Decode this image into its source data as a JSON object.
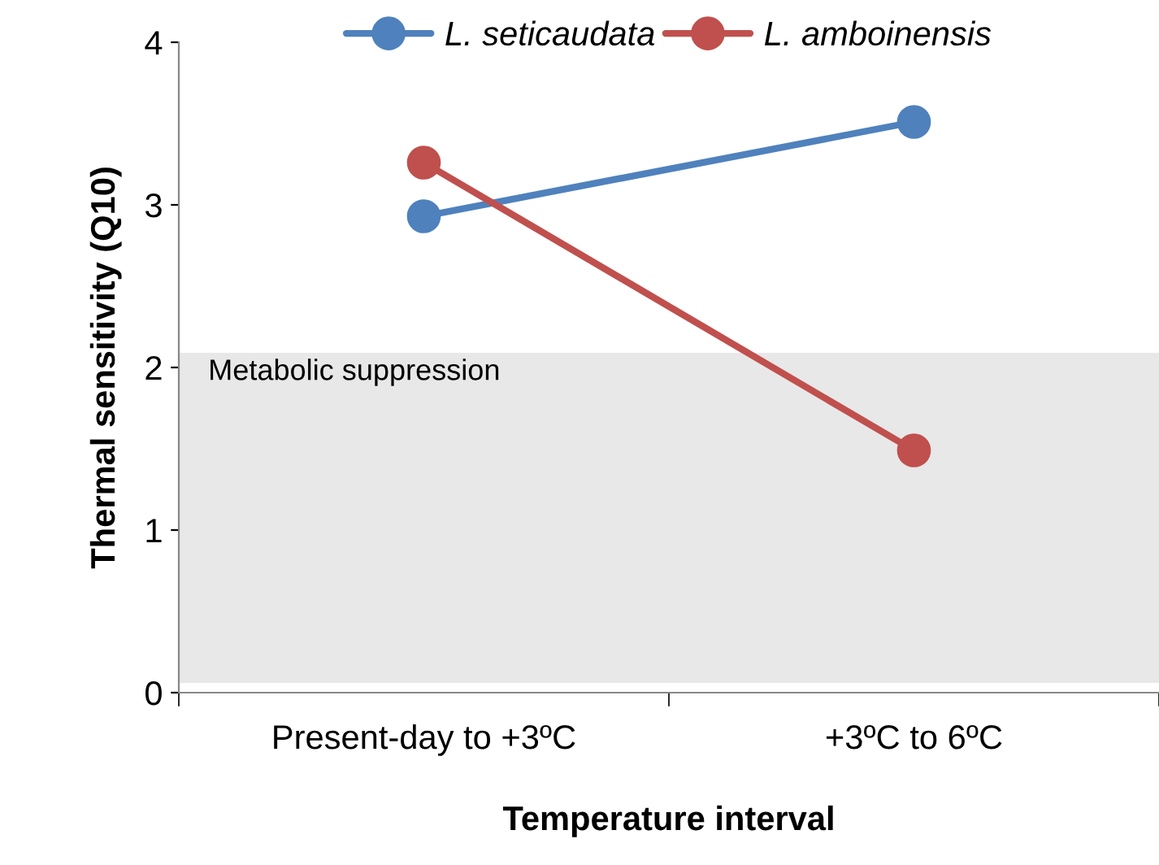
{
  "chart_data": {
    "type": "line",
    "xlabel": "Temperature interval",
    "ylabel": "Thermal sensitivity (Q10)",
    "categories": [
      "Present-day to +3ºC",
      "+3ºC to 6ºC"
    ],
    "series": [
      {
        "name": "L. seticaudata",
        "color": "#4f81bd",
        "values": [
          2.93,
          3.51
        ]
      },
      {
        "name": "L. amboinensis",
        "color": "#c0504d",
        "values": [
          3.26,
          1.49
        ]
      }
    ],
    "ylim": [
      0,
      4
    ],
    "yticks": [
      0,
      1,
      2,
      3,
      4
    ],
    "bands": [
      {
        "axis": "y",
        "from": 0.06,
        "to": 2.09,
        "label": "Metabolic suppression",
        "color": "#e8e8e8"
      }
    ],
    "marker": "circle",
    "line_style": "solid",
    "grid": false,
    "legend": "top"
  }
}
